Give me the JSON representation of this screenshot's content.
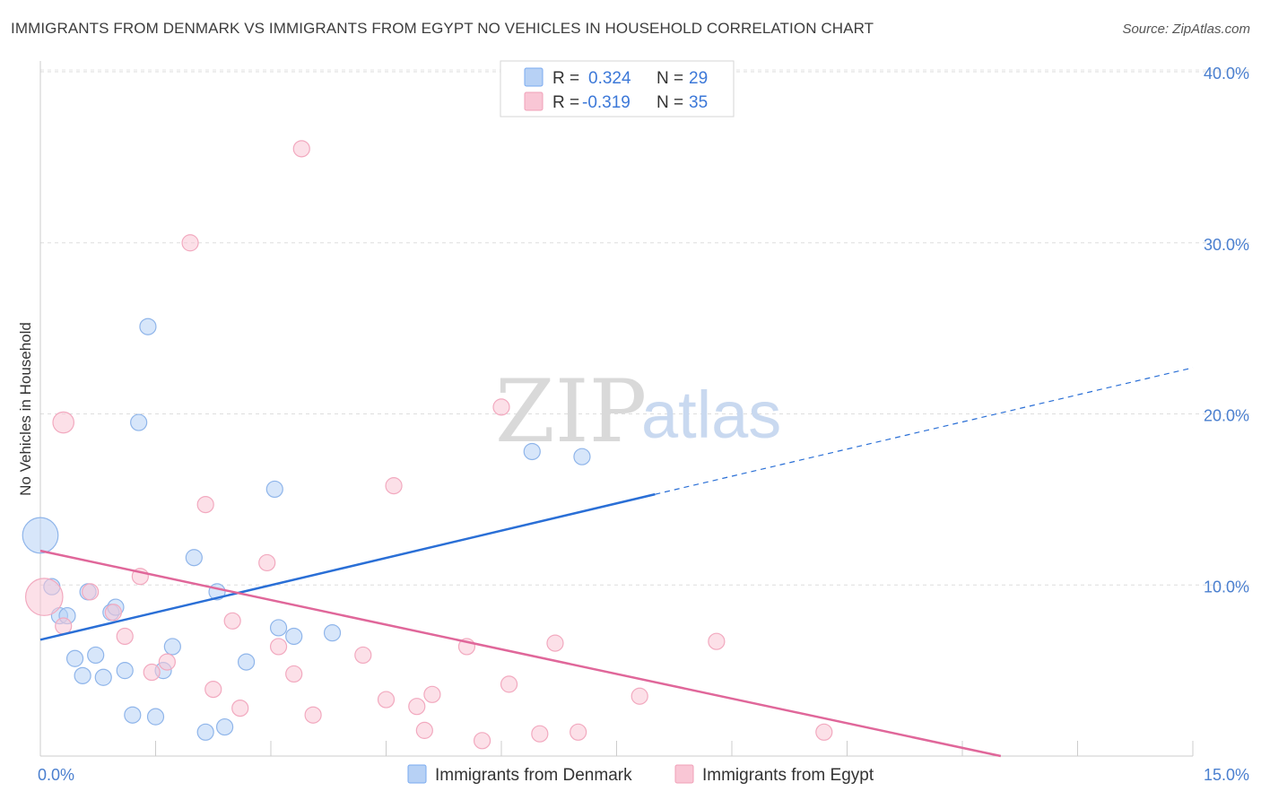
{
  "title": "IMMIGRANTS FROM DENMARK VS IMMIGRANTS FROM EGYPT NO VEHICLES IN HOUSEHOLD CORRELATION CHART",
  "source": "Source: ZipAtlas.com",
  "watermark": {
    "zip": "ZIP",
    "atlas": "atlas"
  },
  "legend": {
    "r_label": "R =",
    "n_label": "N =",
    "rows": [
      {
        "r": "0.324",
        "n": "29"
      },
      {
        "r": "-0.319",
        "n": "35"
      }
    ]
  },
  "chart_data": {
    "type": "scatter",
    "title": "IMMIGRANTS FROM DENMARK VS IMMIGRANTS FROM EGYPT NO VEHICLES IN HOUSEHOLD CORRELATION CHART",
    "xlabel": "",
    "ylabel": "No Vehicles in Household",
    "xlim": [
      0,
      15
    ],
    "ylim": [
      0,
      40
    ],
    "x_tick_labels": [
      "0.0%",
      "15.0%"
    ],
    "y_ticks": [
      10,
      20,
      30,
      40
    ],
    "y_tick_labels": [
      "10.0%",
      "20.0%",
      "30.0%",
      "40.0%"
    ],
    "grid": true,
    "legend_position": "top-center",
    "series": [
      {
        "name": "Immigrants from Denmark",
        "color": "#7aaaf0",
        "line_color": "#2a6fd6",
        "r": 0.324,
        "n": 29,
        "trend": {
          "x0": 0.0,
          "y0": 6.8,
          "x1": 8.0,
          "y1": 15.3,
          "dash_to_x": 15.0,
          "dash_to_y": 22.7
        },
        "points": [
          [
            0.0,
            12.9
          ],
          [
            0.15,
            9.9
          ],
          [
            0.25,
            8.2
          ],
          [
            0.35,
            8.2
          ],
          [
            0.45,
            5.7
          ],
          [
            0.55,
            4.7
          ],
          [
            0.62,
            9.6
          ],
          [
            0.72,
            5.9
          ],
          [
            0.82,
            4.6
          ],
          [
            0.92,
            8.4
          ],
          [
            0.98,
            8.7
          ],
          [
            1.1,
            5.0
          ],
          [
            1.2,
            2.4
          ],
          [
            1.28,
            19.5
          ],
          [
            1.4,
            25.1
          ],
          [
            1.5,
            2.3
          ],
          [
            1.6,
            5.0
          ],
          [
            1.72,
            6.4
          ],
          [
            2.0,
            11.6
          ],
          [
            2.15,
            1.4
          ],
          [
            2.3,
            9.6
          ],
          [
            2.4,
            1.7
          ],
          [
            2.68,
            5.5
          ],
          [
            3.05,
            15.6
          ],
          [
            3.1,
            7.5
          ],
          [
            3.3,
            7.0
          ],
          [
            3.8,
            7.2
          ],
          [
            6.4,
            17.8
          ],
          [
            7.05,
            17.5
          ]
        ],
        "sizes": [
          2.2,
          1,
          1,
          1,
          1,
          1,
          1,
          1,
          1,
          1,
          1,
          1,
          1,
          1,
          1,
          1,
          1,
          1,
          1,
          1,
          1,
          1,
          1,
          1,
          1,
          1,
          1,
          1,
          1
        ]
      },
      {
        "name": "Immigrants from Egypt",
        "color": "#f5a9c0",
        "line_color": "#e0679a",
        "r": -0.319,
        "n": 35,
        "trend": {
          "x0": 0.0,
          "y0": 12.0,
          "x1": 12.5,
          "y1": 0.0
        },
        "points": [
          [
            0.05,
            9.3
          ],
          [
            0.3,
            7.6
          ],
          [
            0.3,
            19.5
          ],
          [
            0.65,
            9.6
          ],
          [
            0.95,
            8.4
          ],
          [
            1.1,
            7.0
          ],
          [
            1.3,
            10.5
          ],
          [
            1.45,
            4.9
          ],
          [
            1.65,
            5.5
          ],
          [
            1.95,
            30.0
          ],
          [
            2.15,
            14.7
          ],
          [
            2.25,
            3.9
          ],
          [
            2.5,
            7.9
          ],
          [
            2.6,
            2.8
          ],
          [
            2.95,
            11.3
          ],
          [
            3.1,
            6.4
          ],
          [
            3.3,
            4.8
          ],
          [
            3.4,
            35.5
          ],
          [
            3.55,
            2.4
          ],
          [
            4.2,
            5.9
          ],
          [
            4.5,
            3.3
          ],
          [
            4.6,
            15.8
          ],
          [
            4.9,
            2.9
          ],
          [
            5.0,
            1.5
          ],
          [
            5.1,
            3.6
          ],
          [
            5.55,
            6.4
          ],
          [
            5.75,
            0.9
          ],
          [
            6.0,
            20.4
          ],
          [
            6.1,
            4.2
          ],
          [
            6.5,
            1.3
          ],
          [
            6.7,
            6.6
          ],
          [
            7.0,
            1.4
          ],
          [
            7.8,
            3.5
          ],
          [
            8.8,
            6.7
          ],
          [
            10.2,
            1.4
          ]
        ],
        "sizes": [
          2.3,
          1,
          1.3,
          1,
          1,
          1,
          1,
          1,
          1,
          1,
          1,
          1,
          1,
          1,
          1,
          1,
          1,
          1,
          1,
          1,
          1,
          1,
          1,
          1,
          1,
          1,
          1,
          1,
          1,
          1,
          1,
          1,
          1,
          1,
          1
        ]
      }
    ]
  }
}
